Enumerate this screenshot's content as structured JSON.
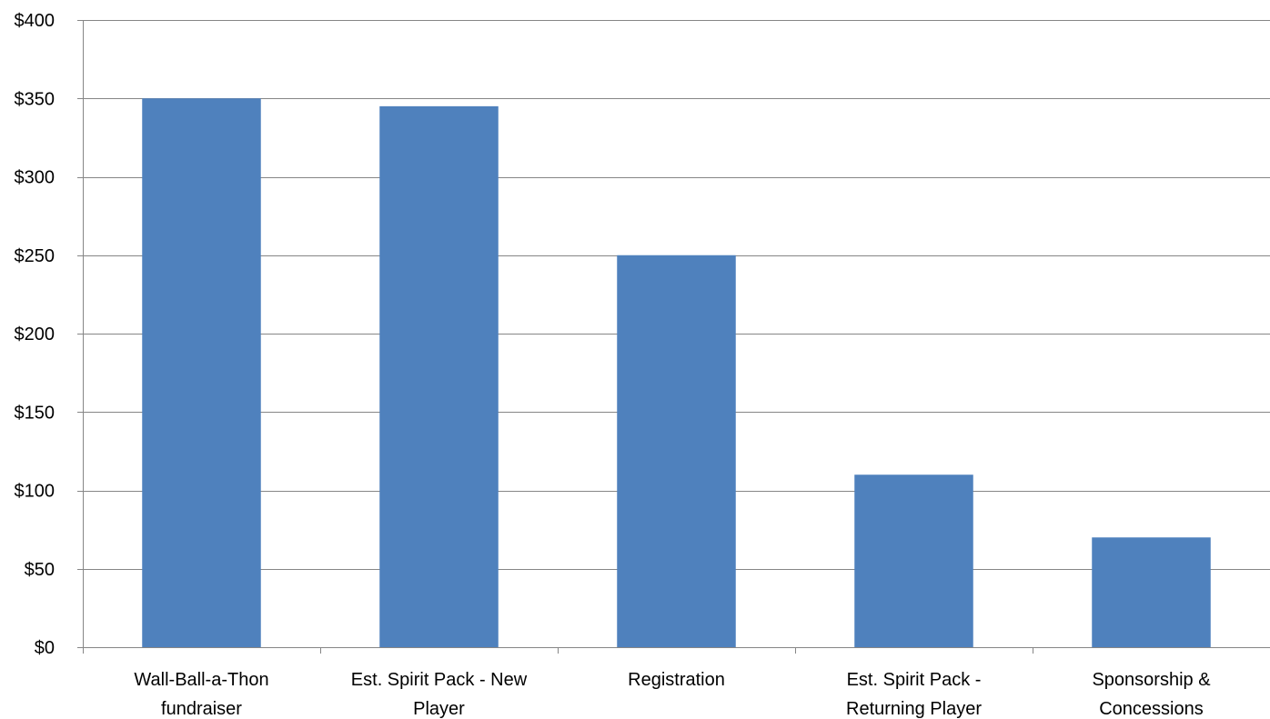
{
  "chart_data": {
    "type": "bar",
    "title": "",
    "xlabel": "",
    "ylabel": "",
    "categories": [
      [
        "Wall-Ball-a-Thon",
        "fundraiser"
      ],
      [
        "Est. Spirit Pack - New",
        "Player"
      ],
      [
        "Registration"
      ],
      [
        "Est. Spirit Pack -",
        "Returning Player"
      ],
      [
        "Sponsorship &",
        "Concessions"
      ]
    ],
    "values": [
      350,
      345,
      250,
      110,
      70
    ],
    "ylim": [
      0,
      400
    ],
    "yticks": [
      0,
      50,
      100,
      150,
      200,
      250,
      300,
      350,
      400
    ],
    "ytick_labels": [
      "$0",
      "$50",
      "$100",
      "$150",
      "$200",
      "$250",
      "$300",
      "$350",
      "$400"
    ],
    "grid": true,
    "legend": "none",
    "colors": {
      "bar": "#4f81bd",
      "grid": "#868686",
      "axis": "#868686"
    }
  }
}
